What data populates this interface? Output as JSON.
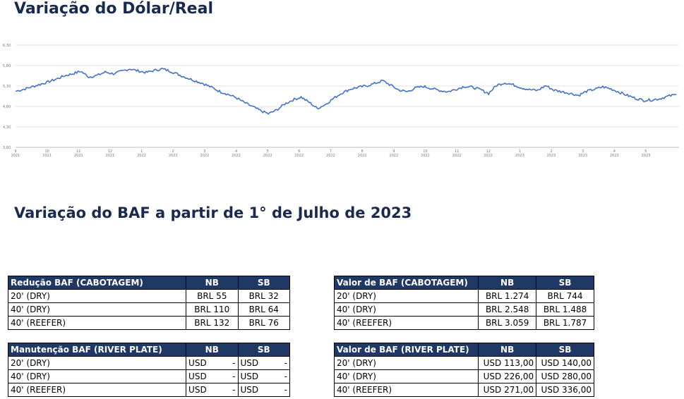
{
  "titles": {
    "dolar": "Variação do Dólar/Real",
    "baf": "Variação do BAF a partir de 1° de Julho de 2023"
  },
  "chart_data": {
    "type": "line",
    "title": "",
    "xlabel": "",
    "ylabel": "",
    "ylim": [
      3.8,
      6.3
    ],
    "yticks": [
      "6,30",
      "5,80",
      "5,30",
      "4,80",
      "4,30",
      "3,80"
    ],
    "ytick_values": [
      6.3,
      5.8,
      5.3,
      4.8,
      4.3,
      3.8
    ],
    "xticks": [
      {
        "m": "9",
        "y": "2021"
      },
      {
        "m": "10",
        "y": "2021"
      },
      {
        "m": "11",
        "y": "2021"
      },
      {
        "m": "12",
        "y": "2021"
      },
      {
        "m": "1",
        "y": "2022"
      },
      {
        "m": "2",
        "y": "2022"
      },
      {
        "m": "3",
        "y": "2022"
      },
      {
        "m": "4",
        "y": "2022"
      },
      {
        "m": "5",
        "y": "2022"
      },
      {
        "m": "6",
        "y": "2022"
      },
      {
        "m": "7",
        "y": "2022"
      },
      {
        "m": "8",
        "y": "2022"
      },
      {
        "m": "9",
        "y": "2022"
      },
      {
        "m": "10",
        "y": "2022"
      },
      {
        "m": "11",
        "y": "2022"
      },
      {
        "m": "12",
        "y": "2022"
      },
      {
        "m": "1",
        "y": "2023"
      },
      {
        "m": "2",
        "y": "2023"
      },
      {
        "m": "3",
        "y": "2023"
      },
      {
        "m": "4",
        "y": "2023"
      },
      {
        "m": "5",
        "y": "2023"
      }
    ],
    "grid": true,
    "color": "#4472c4",
    "series": [
      {
        "values": [
          5.17,
          5.22,
          5.28,
          5.34,
          5.4,
          5.47,
          5.55,
          5.6,
          5.66,
          5.52,
          5.56,
          5.64,
          5.6,
          5.66,
          5.72,
          5.67,
          5.63,
          5.68,
          5.72,
          5.66,
          5.58,
          5.5,
          5.43,
          5.36,
          5.27,
          5.17,
          5.1,
          5.02,
          4.9,
          4.8,
          4.7,
          4.62,
          4.71,
          4.86,
          4.96,
          5.03,
          4.9,
          4.75,
          4.85,
          5.0,
          5.13,
          5.22,
          5.27,
          5.3,
          5.36,
          5.43,
          5.32,
          5.2,
          5.16,
          5.25,
          5.29,
          5.24,
          5.19,
          5.16,
          5.22,
          5.29,
          5.27,
          5.21,
          5.12,
          5.32,
          5.38,
          5.33,
          5.26,
          5.21,
          5.19,
          5.31,
          5.2,
          5.16,
          5.12,
          5.07,
          5.17,
          5.22,
          5.28,
          5.23,
          5.15,
          5.07,
          5.0,
          4.95,
          4.96,
          4.99,
          5.05,
          5.09
        ]
      }
    ]
  },
  "tables": {
    "reducao": {
      "header": [
        "Redução BAF (CABOTAGEM)",
        "NB",
        "SB"
      ],
      "rows": [
        [
          "20' (DRY)",
          "BRL 55",
          "BRL 32"
        ],
        [
          "40' (DRY)",
          "BRL 110",
          "BRL 64"
        ],
        [
          "40' (REEFER)",
          "BRL 132",
          "BRL 76"
        ]
      ]
    },
    "valor_cab": {
      "header": [
        "Valor de BAF (CABOTAGEM)",
        "NB",
        "SB"
      ],
      "rows": [
        [
          "20' (DRY)",
          "BRL 1.274",
          "BRL 744"
        ],
        [
          "40' (DRY)",
          "BRL 2.548",
          "BRL 1.488"
        ],
        [
          "40' (REEFER)",
          "BRL 3.059",
          "BRL 1.787"
        ]
      ]
    },
    "manutencao": {
      "header": [
        "Manutenção BAF (RIVER PLATE)",
        "NB",
        "SB"
      ],
      "rows": [
        [
          "20' (DRY)",
          "USD",
          "-",
          "USD",
          "-"
        ],
        [
          "40' (DRY)",
          "USD",
          "-",
          "USD",
          "-"
        ],
        [
          "40' (REEFER)",
          "USD",
          "-",
          "USD",
          "-"
        ]
      ]
    },
    "valor_river": {
      "header": [
        "Valor de BAF (RIVER PLATE)",
        "NB",
        "SB"
      ],
      "rows": [
        [
          "20' (DRY)",
          "USD  113,00",
          "USD  140,00"
        ],
        [
          "40' (DRY)",
          "USD  226,00",
          "USD  280,00"
        ],
        [
          "40' (REEFER)",
          "USD  271,00",
          "USD  336,00"
        ]
      ]
    }
  }
}
